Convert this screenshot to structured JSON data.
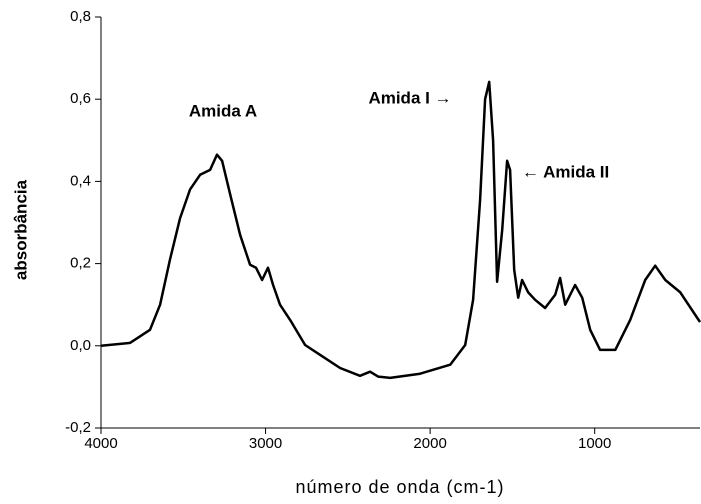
{
  "chart_data": {
    "type": "line",
    "x_label": "número de onda (cm-1)",
    "y_label": "absorbância",
    "annotations": [
      "Amida A",
      "Amida I →",
      "← Amida II"
    ],
    "xlim": [
      4000,
      360
    ],
    "xticks": [
      4000,
      3000,
      2000,
      1000
    ],
    "ylim": [
      -0.2,
      0.8
    ],
    "yticks": [
      {
        "value": -0.2,
        "label": "-0,2"
      },
      {
        "value": 0,
        "label": "0,0"
      },
      {
        "value": 0.2,
        "label": "0,2"
      },
      {
        "value": 0.4,
        "label": "0,4"
      },
      {
        "value": 0.6,
        "label": "0,6"
      },
      {
        "value": 0.8,
        "label": "0,8"
      }
    ],
    "series": [
      {
        "color": "#000000",
        "x": [
          4000,
          3824,
          3702,
          3641,
          3581,
          3520,
          3459,
          3398,
          3337,
          3295,
          3264,
          3216,
          3155,
          3094,
          3058,
          3021,
          2985,
          2954,
          2912,
          2851,
          2760,
          2669,
          2547,
          2426,
          2365,
          2316,
          2243,
          2061,
          1878,
          1787,
          1739,
          1696,
          1666,
          1641,
          1617,
          1593,
          1562,
          1532,
          1514,
          1489,
          1465,
          1441,
          1404,
          1362,
          1301,
          1240,
          1210,
          1179,
          1119,
          1076,
          1027,
          967,
          875,
          784,
          693,
          632,
          571,
          480,
          360
        ],
        "values": [
          0.0,
          0.007,
          0.039,
          0.1,
          0.21,
          0.31,
          0.38,
          0.416,
          0.428,
          0.465,
          0.45,
          0.37,
          0.27,
          0.197,
          0.19,
          0.16,
          0.19,
          0.148,
          0.1,
          0.063,
          0.002,
          -0.022,
          -0.054,
          -0.073,
          -0.063,
          -0.075,
          -0.078,
          -0.068,
          -0.046,
          0.002,
          0.112,
          0.355,
          0.6,
          0.642,
          0.5,
          0.156,
          0.282,
          0.45,
          0.428,
          0.185,
          0.117,
          0.16,
          0.13,
          0.112,
          0.092,
          0.124,
          0.165,
          0.1,
          0.148,
          0.117,
          0.039,
          -0.01,
          -0.01,
          0.063,
          0.16,
          0.195,
          0.16,
          0.13,
          0.058
        ]
      }
    ]
  }
}
